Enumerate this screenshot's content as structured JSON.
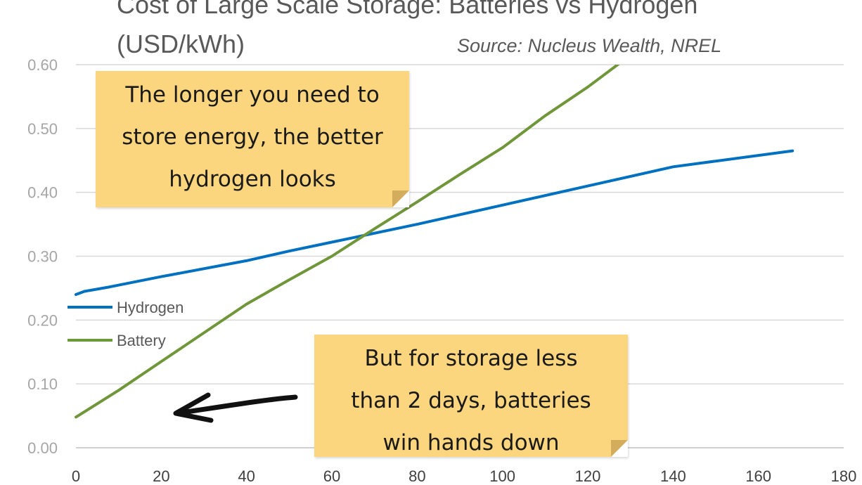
{
  "chart_data": {
    "type": "line",
    "title_line_1": "Cost of Large Scale Storage: Batteries vs Hydrogen",
    "title_line_2": "(USD/kWh)",
    "source": "Source: Nucleus Wealth, NREL",
    "xlim": [
      0,
      180
    ],
    "ylim": [
      0,
      0.6
    ],
    "x_ticks": [
      "0",
      "20",
      "40",
      "60",
      "80",
      "100",
      "120",
      "140",
      "160",
      "180"
    ],
    "y_ticks": [
      "0.00",
      "0.10",
      "0.20",
      "0.30",
      "0.40",
      "0.50",
      "0.60"
    ],
    "grid": true,
    "legend_position": "left",
    "series": [
      {
        "name": "Hydrogen",
        "color": "#0070c0",
        "x": [
          0,
          2,
          8,
          20,
          40,
          50,
          60,
          80,
          100,
          120,
          140,
          168
        ],
        "y": [
          0.24,
          0.245,
          0.252,
          0.268,
          0.293,
          0.308,
          0.322,
          0.35,
          0.38,
          0.41,
          0.44,
          0.465
        ]
      },
      {
        "name": "Battery",
        "color": "#70963a",
        "x": [
          0,
          10,
          20,
          30,
          40,
          50,
          60,
          70,
          80,
          90,
          100,
          110,
          120,
          128
        ],
        "y": [
          0.048,
          0.09,
          0.135,
          0.18,
          0.225,
          0.263,
          0.3,
          0.343,
          0.385,
          0.428,
          0.47,
          0.52,
          0.565,
          0.605
        ]
      }
    ],
    "annotations": [
      {
        "lines": [
          "The longer you need to",
          "store energy, the better",
          "hydrogen looks"
        ]
      },
      {
        "lines": [
          "But for storage less",
          "than 2 days, batteries",
          "win hands down"
        ]
      }
    ]
  }
}
